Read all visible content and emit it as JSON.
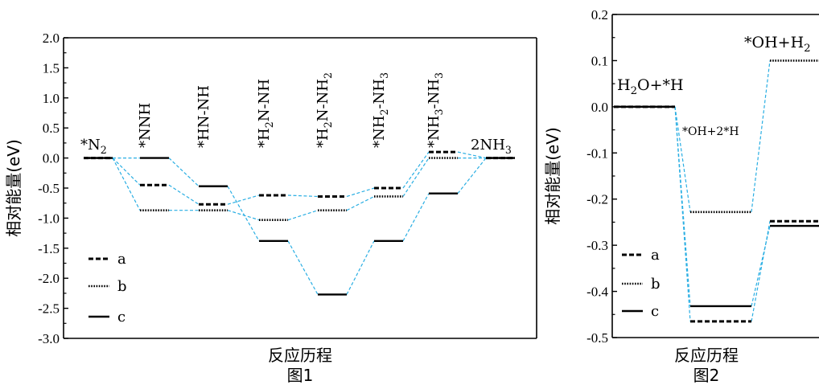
{
  "chart_data": [
    {
      "type": "line",
      "caption": "图1",
      "xlabel": "反应历程",
      "ylabel": "相对能量(eV)",
      "ylim": [
        -3.0,
        2.0
      ],
      "yticks": [
        "2.0",
        "1.5",
        "1.0",
        "0.5",
        "0.0",
        "-0.5",
        "-1.0",
        "-1.5",
        "-2.0",
        "-2.5",
        "-3.0"
      ],
      "steps": [
        "*N2",
        "*NNH",
        "*HN-NH",
        "*H2N-NH",
        "*H2N-NH2",
        "*NH2-NH3",
        "*NH3-NH3",
        "2NH3"
      ],
      "step_labels": [
        {
          "main": "*N",
          "sub": "2"
        },
        {
          "main": "*NNH",
          "sub": ""
        },
        {
          "main": "*HN-NH",
          "sub": ""
        },
        {
          "main": "*H",
          "sub": "2",
          "rest": "N-NH"
        },
        {
          "main": "*H",
          "sub": "2",
          "rest": "N-NH",
          "sub2": "2"
        },
        {
          "main": "*NH",
          "sub": "2",
          "rest": "-NH",
          "sub2": "3"
        },
        {
          "main": "*NH",
          "sub": "3",
          "rest": "-NH",
          "sub2": "3"
        },
        {
          "main": "2NH",
          "sub": "3"
        }
      ],
      "legend": {
        "position": "bottom-left",
        "entries": [
          {
            "name": "a",
            "style": "dashed"
          },
          {
            "name": "b",
            "style": "dotted"
          },
          {
            "name": "c",
            "style": "solid"
          }
        ]
      },
      "series": [
        {
          "name": "a",
          "style": "dashed",
          "levels": [
            0.0,
            -0.45,
            -0.77,
            -0.62,
            -0.64,
            -0.5,
            0.1,
            0.0
          ]
        },
        {
          "name": "b",
          "style": "dotted",
          "levels": [
            0.0,
            -0.87,
            -0.87,
            -1.03,
            -0.87,
            -0.64,
            0.0,
            0.0
          ]
        },
        {
          "name": "c",
          "style": "solid",
          "levels": [
            0.0,
            0.0,
            -0.47,
            -1.38,
            -2.27,
            -1.38,
            -0.59,
            0.0
          ]
        }
      ],
      "connector_color": "#29aee3"
    },
    {
      "type": "line",
      "caption": "图2",
      "xlabel": "反应历程",
      "ylabel": "相对能量(eV)",
      "ylim": [
        -0.5,
        0.2
      ],
      "yticks": [
        "0.2",
        "0.1",
        "0.0",
        "-0.1",
        "-0.2",
        "-0.3",
        "-0.4",
        "-0.5"
      ],
      "steps": [
        "H2O+*H",
        "*OH+2*H",
        "*OH+H2"
      ],
      "step_labels": [
        {
          "main": "H",
          "sub": "2",
          "rest": "O+*H"
        },
        {
          "main": "*OH+2*H",
          "sub": ""
        },
        {
          "main": "*OH+H",
          "sub": "2"
        }
      ],
      "legend": {
        "position": "bottom-left",
        "entries": [
          {
            "name": "a",
            "style": "dashed"
          },
          {
            "name": "b",
            "style": "dotted"
          },
          {
            "name": "c",
            "style": "solid"
          }
        ]
      },
      "series": [
        {
          "name": "a",
          "style": "dashed",
          "levels": [
            0.0,
            -0.465,
            -0.248
          ]
        },
        {
          "name": "b",
          "style": "dotted",
          "levels": [
            0.0,
            -0.228,
            0.1
          ]
        },
        {
          "name": "c",
          "style": "solid",
          "levels": [
            0.0,
            -0.432,
            -0.258
          ]
        }
      ],
      "connector_color": "#29aee3"
    }
  ]
}
